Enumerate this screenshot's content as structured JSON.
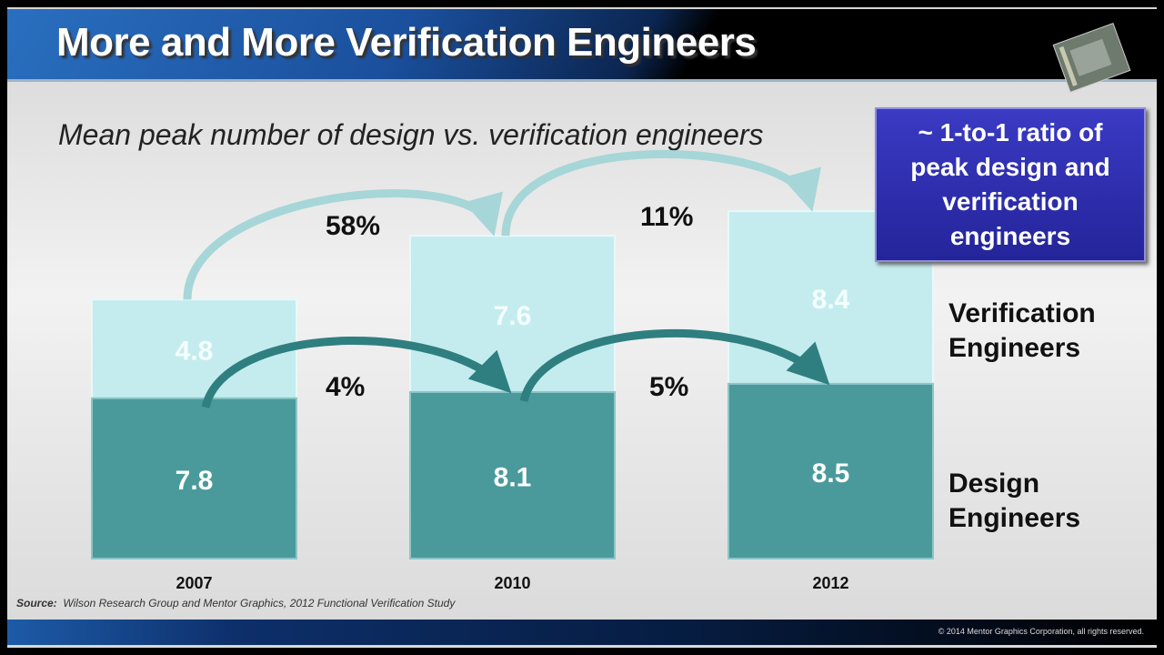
{
  "slide": {
    "title": "More and More Verification Engineers",
    "subtitle": "Mean peak number of design vs. verification engineers",
    "callout": "~ 1-to-1 ratio of peak design and verification engineers",
    "source_label": "Source:",
    "source_text": "Wilson Research Group and Mentor Graphics, 2012 Functional Verification Study",
    "copyright": "© 2014 Mentor Graphics Corporation, all rights reserved."
  },
  "chart_data": {
    "type": "bar",
    "stacked": true,
    "categories": [
      "2007",
      "2010",
      "2012"
    ],
    "series": [
      {
        "name": "Design Engineers",
        "values": [
          7.8,
          8.1,
          8.5
        ],
        "color": "#4a9a9c"
      },
      {
        "name": "Verification Engineers",
        "values": [
          4.8,
          7.6,
          8.4
        ],
        "color": "#c4ecee"
      }
    ],
    "legend": [
      "Verification Engineers",
      "Design Engineers"
    ],
    "legend_lines": {
      "verification": [
        "Verification",
        "Engineers"
      ],
      "design": [
        "Design",
        "Engineers"
      ]
    },
    "growth_annotations": {
      "verification": [
        "58%",
        "11%"
      ],
      "design": [
        "4%",
        "5%"
      ]
    },
    "legend_position": "right",
    "grid": false
  }
}
